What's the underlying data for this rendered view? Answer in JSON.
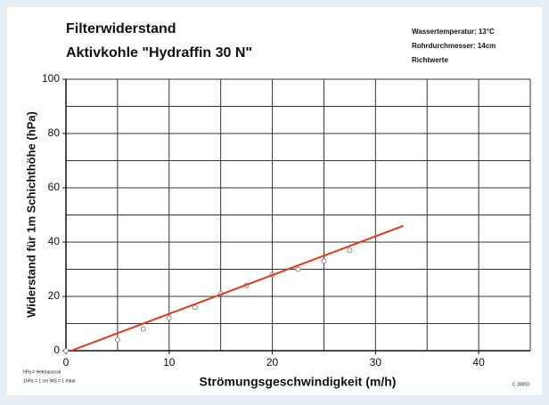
{
  "chart_data": {
    "type": "scatter",
    "title": "Filterwiderstand",
    "subtitle": "Aktivkohle \"Hydraffin 30 N\"",
    "notes": [
      "Wassertemperatur: 13°C",
      "Rohrdurchmesser: 14cm",
      "Richtwerte"
    ],
    "footnotes": [
      "hPa = Hektopascal",
      "1hPa = 1 cm WS = 1 mbar"
    ],
    "code": "C 30003",
    "x_label": "Strömungsgeschwindigkeit (m/h)",
    "y_label": "Widerstand für 1m Schichthöhe (hPa)",
    "xlim": [
      0,
      45
    ],
    "ylim": [
      0,
      100
    ],
    "xticks": [
      0,
      10,
      20,
      30,
      40
    ],
    "yticks": [
      0,
      20,
      40,
      60,
      80,
      100
    ],
    "xgrid": [
      5,
      10,
      15,
      20,
      25,
      30,
      35,
      40,
      45
    ],
    "ygrid": [
      10,
      20,
      30,
      40,
      50,
      60,
      70,
      80,
      90,
      100
    ],
    "grid": true,
    "series": [
      {
        "name": null,
        "color": "#888888",
        "marker": "open-circle",
        "x": [
          0,
          5,
          7.5,
          10,
          12.5,
          15,
          17.5,
          20,
          22.5,
          25,
          27.5
        ],
        "values": [
          0,
          4,
          8,
          12,
          16,
          21,
          24,
          28,
          30,
          33,
          37
        ]
      },
      {
        "name": null,
        "color": "#e8341c",
        "marker": "line",
        "x": [
          0.5,
          32.7
        ],
        "values": [
          0,
          46
        ]
      }
    ]
  }
}
